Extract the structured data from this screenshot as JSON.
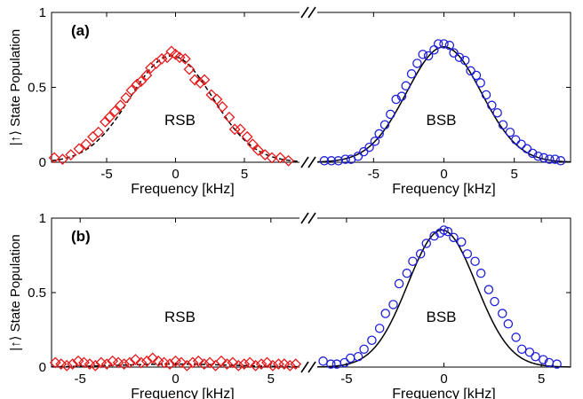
{
  "chart_data": [
    {
      "type": "scatter",
      "panel_label": "(a)",
      "ylabel": "|↑⟩ State Population",
      "ylim": [
        0,
        1
      ],
      "yticks": [
        "0",
        "0.5",
        "1"
      ],
      "subplots": [
        {
          "name": "RSB",
          "xlabel": "Frequency [kHz]",
          "xlim": [
            -9,
            9
          ],
          "xticks": [
            "-5",
            "0",
            "5"
          ],
          "marker": "diamond",
          "color": "#e8191b",
          "fit_color": "#000000",
          "fit": {
            "amplitude": 0.71,
            "center": -0.3,
            "sigma": 3.0
          },
          "x": [
            -8.8,
            -8.2,
            -7.6,
            -7.0,
            -6.5,
            -6.0,
            -5.6,
            -5.1,
            -4.8,
            -4.4,
            -4.0,
            -3.6,
            -3.2,
            -2.8,
            -2.5,
            -2.1,
            -1.8,
            -1.4,
            -1.0,
            -0.6,
            -0.3,
            0.0,
            0.3,
            0.7,
            1.0,
            1.4,
            1.8,
            2.1,
            2.6,
            3.0,
            3.4,
            3.9,
            4.3,
            4.7,
            5.2,
            5.6,
            6.0,
            6.5,
            7.0,
            7.6,
            8.2
          ],
          "y": [
            0.03,
            0.02,
            0.05,
            0.09,
            0.12,
            0.17,
            0.2,
            0.27,
            0.3,
            0.34,
            0.38,
            0.43,
            0.48,
            0.52,
            0.54,
            0.58,
            0.63,
            0.66,
            0.69,
            0.7,
            0.74,
            0.72,
            0.7,
            0.69,
            0.62,
            0.55,
            0.53,
            0.55,
            0.45,
            0.42,
            0.37,
            0.3,
            0.22,
            0.22,
            0.17,
            0.12,
            0.08,
            0.05,
            0.03,
            0.03,
            0.01
          ]
        },
        {
          "name": "BSB",
          "xlabel": "Frequency [kHz]",
          "xlim": [
            -9,
            9
          ],
          "xticks": [
            "-5",
            "0",
            "5"
          ],
          "marker": "circle",
          "color": "#1f1fd8",
          "fit_color": "#000000",
          "fit": {
            "amplitude": 0.77,
            "center": 0.0,
            "sigma": 2.65
          },
          "x": [
            -8.5,
            -8.0,
            -7.5,
            -7.0,
            -6.6,
            -6.1,
            -5.7,
            -5.3,
            -4.9,
            -4.6,
            -4.2,
            -3.8,
            -3.4,
            -3.0,
            -2.7,
            -2.3,
            -1.9,
            -1.5,
            -1.1,
            -0.7,
            -0.4,
            0.0,
            0.4,
            0.7,
            1.1,
            1.5,
            1.9,
            2.3,
            2.6,
            3.0,
            3.4,
            3.8,
            4.2,
            4.7,
            5.1,
            5.5,
            5.9,
            6.3,
            6.7,
            7.1,
            7.5,
            7.9,
            8.3
          ],
          "y": [
            0.01,
            0.01,
            0.01,
            0.02,
            0.02,
            0.04,
            0.07,
            0.1,
            0.14,
            0.19,
            0.25,
            0.32,
            0.42,
            0.44,
            0.51,
            0.59,
            0.66,
            0.72,
            0.71,
            0.75,
            0.79,
            0.79,
            0.78,
            0.73,
            0.7,
            0.68,
            0.61,
            0.58,
            0.53,
            0.45,
            0.38,
            0.33,
            0.25,
            0.2,
            0.15,
            0.12,
            0.09,
            0.06,
            0.04,
            0.03,
            0.02,
            0.02,
            0.01
          ]
        }
      ]
    },
    {
      "type": "scatter",
      "panel_label": "(b)",
      "ylabel": "|↑⟩ State Population",
      "ylim": [
        0,
        1
      ],
      "yticks": [
        "0",
        "0.5",
        "1"
      ],
      "subplots": [
        {
          "name": "RSB",
          "xlabel": "Frequency [kHz]",
          "xlim": [
            -6.5,
            6.5
          ],
          "xticks": [
            "-5",
            "0",
            "5"
          ],
          "marker": "diamond",
          "color": "#e8191b",
          "fit_color": "#000000",
          "fit": {
            "amplitude": 0.02,
            "center": 0.0,
            "sigma": 3.0
          },
          "x": [
            -6.3,
            -6.0,
            -5.7,
            -5.4,
            -5.1,
            -4.8,
            -4.5,
            -4.2,
            -3.9,
            -3.6,
            -3.3,
            -3.0,
            -2.7,
            -2.4,
            -2.1,
            -1.8,
            -1.5,
            -1.2,
            -0.9,
            -0.6,
            -0.3,
            0.0,
            0.3,
            0.6,
            0.9,
            1.2,
            1.5,
            1.8,
            2.1,
            2.4,
            2.7,
            3.0,
            3.3,
            3.6,
            3.9,
            4.2,
            4.5,
            4.8,
            5.1,
            5.4,
            5.7,
            6.0,
            6.3
          ],
          "y": [
            0.03,
            0.02,
            0.01,
            0.02,
            0.04,
            0.03,
            0.02,
            0.01,
            0.03,
            0.02,
            0.04,
            0.03,
            0.02,
            0.03,
            0.05,
            0.03,
            0.04,
            0.06,
            0.04,
            0.03,
            0.02,
            0.04,
            0.03,
            0.01,
            0.03,
            0.04,
            0.02,
            0.03,
            0.01,
            0.04,
            0.02,
            0.03,
            0.01,
            0.02,
            0.03,
            0.01,
            0.02,
            0.03,
            0.01,
            0.02,
            0.02,
            0.01,
            0.02
          ]
        },
        {
          "name": "BSB",
          "xlabel": "Frequency [kHz]",
          "xlim": [
            -6.5,
            6.5
          ],
          "xticks": [
            "-5",
            "0",
            "5"
          ],
          "marker": "circle",
          "color": "#1f1fd8",
          "fit_color": "#000000",
          "fit": {
            "amplitude": 0.92,
            "center": -0.1,
            "sigma": 1.75
          },
          "x": [
            -6.2,
            -5.8,
            -5.5,
            -5.1,
            -4.8,
            -4.4,
            -4.1,
            -3.7,
            -3.3,
            -3.0,
            -2.6,
            -2.3,
            -1.9,
            -1.6,
            -1.2,
            -0.9,
            -0.5,
            -0.2,
            0.0,
            0.2,
            0.5,
            0.9,
            1.2,
            1.6,
            1.9,
            2.3,
            2.6,
            3.0,
            3.3,
            3.7,
            4.0,
            4.4,
            4.7,
            5.1,
            5.4,
            5.8
          ],
          "y": [
            0.04,
            0.02,
            0.02,
            0.03,
            0.06,
            0.07,
            0.12,
            0.18,
            0.26,
            0.36,
            0.42,
            0.56,
            0.63,
            0.71,
            0.76,
            0.83,
            0.88,
            0.9,
            0.92,
            0.91,
            0.87,
            0.84,
            0.76,
            0.71,
            0.63,
            0.52,
            0.44,
            0.36,
            0.29,
            0.2,
            0.12,
            0.1,
            0.07,
            0.05,
            0.03,
            0.02
          ]
        }
      ]
    }
  ]
}
